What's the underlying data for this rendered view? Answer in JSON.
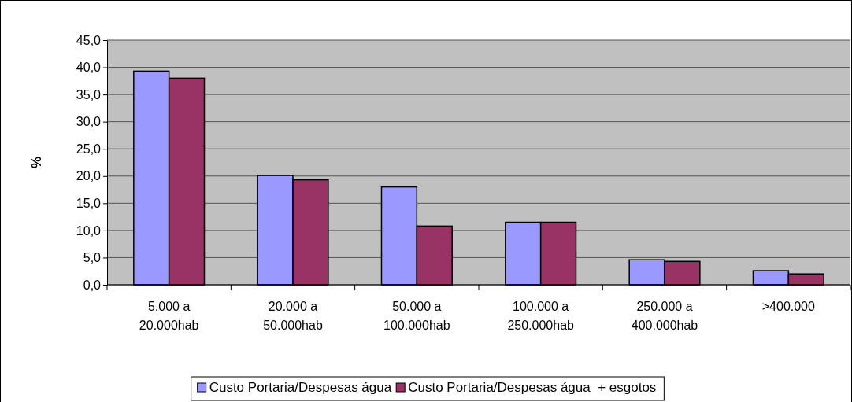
{
  "chart_data": {
    "type": "bar",
    "ylabel": "%",
    "categories": [
      "5.000 a\n20.000hab",
      "20.000 a\n50.000hab",
      "50.000 a\n100.000hab",
      "100.000 a\n250.000hab",
      "250.000 a\n400.000hab",
      ">400.000"
    ],
    "series": [
      {
        "name": "Custo Portaria/Despesas água",
        "color": "#9999ff",
        "values": [
          39.3,
          20.1,
          18.0,
          11.5,
          4.6,
          2.6
        ]
      },
      {
        "name": "Custo Portaria/Despesas água  + esgotos",
        "color": "#993366",
        "values": [
          38.0,
          19.3,
          10.8,
          11.5,
          4.3,
          2.0
        ]
      }
    ],
    "ylim": [
      0,
      45
    ],
    "yticks": [
      {
        "value": 0,
        "label": "0,0"
      },
      {
        "value": 5,
        "label": "5,0"
      },
      {
        "value": 10,
        "label": "10,0"
      },
      {
        "value": 15,
        "label": "15,0"
      },
      {
        "value": 20,
        "label": "20,0"
      },
      {
        "value": 25,
        "label": "25,0"
      },
      {
        "value": 30,
        "label": "30,0"
      },
      {
        "value": 35,
        "label": "35,0"
      },
      {
        "value": 40,
        "label": "40,0"
      },
      {
        "value": 45,
        "label": "45,0"
      }
    ],
    "grid": "y",
    "legend": "bottom"
  }
}
